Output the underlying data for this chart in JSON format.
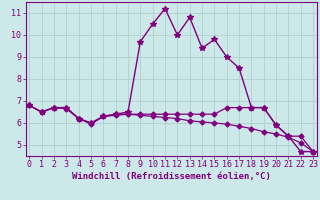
{
  "line1": {
    "x": [
      0,
      1,
      2,
      3,
      4,
      5,
      6,
      7,
      8,
      9,
      10,
      11,
      12,
      13,
      14,
      15,
      16,
      17,
      18,
      19,
      20,
      21,
      22,
      23
    ],
    "y": [
      6.8,
      6.5,
      6.7,
      6.7,
      6.2,
      6.0,
      6.3,
      6.4,
      6.5,
      9.7,
      10.5,
      11.2,
      10.0,
      10.8,
      9.4,
      9.8,
      9.0,
      8.5,
      6.7,
      6.7,
      5.9,
      5.4,
      4.7,
      4.7
    ],
    "color": "#800080",
    "marker": "*",
    "markersize": 4,
    "linewidth": 1.0
  },
  "line2": {
    "x": [
      0,
      1,
      2,
      3,
      4,
      5,
      6,
      7,
      8,
      9,
      10,
      11,
      12,
      13,
      14,
      15,
      16,
      17,
      18,
      19,
      20,
      21,
      22,
      23
    ],
    "y": [
      6.8,
      6.5,
      6.7,
      6.7,
      6.2,
      6.0,
      6.3,
      6.4,
      6.4,
      6.4,
      6.4,
      6.4,
      6.4,
      6.4,
      6.4,
      6.4,
      6.7,
      6.7,
      6.7,
      6.7,
      5.9,
      5.4,
      5.4,
      4.7
    ],
    "color": "#800080",
    "marker": "D",
    "markersize": 2.5,
    "linewidth": 0.9
  },
  "line3": {
    "x": [
      0,
      1,
      2,
      3,
      4,
      5,
      6,
      7,
      8,
      9,
      10,
      11,
      12,
      13,
      14,
      15,
      16,
      17,
      18,
      19,
      20,
      21,
      22,
      23
    ],
    "y": [
      6.8,
      6.5,
      6.7,
      6.65,
      6.2,
      5.95,
      6.3,
      6.35,
      6.4,
      6.35,
      6.3,
      6.25,
      6.2,
      6.1,
      6.05,
      6.0,
      5.95,
      5.85,
      5.75,
      5.6,
      5.5,
      5.35,
      5.1,
      4.7
    ],
    "color": "#800080",
    "marker": "D",
    "markersize": 2.5,
    "linewidth": 0.9
  },
  "background_color": "#cce8e8",
  "grid_color": "#aacccc",
  "axis_color": "#800080",
  "xlabel": "Windchill (Refroidissement éolien,°C)",
  "xlabel_fontsize": 6.5,
  "tick_color": "#800080",
  "tick_fontsize": 6,
  "xlim": [
    -0.3,
    23.3
  ],
  "ylim": [
    4.5,
    11.5
  ],
  "yticks": [
    5,
    6,
    7,
    8,
    9,
    10,
    11
  ],
  "xticks": [
    0,
    1,
    2,
    3,
    4,
    5,
    6,
    7,
    8,
    9,
    10,
    11,
    12,
    13,
    14,
    15,
    16,
    17,
    18,
    19,
    20,
    21,
    22,
    23
  ]
}
